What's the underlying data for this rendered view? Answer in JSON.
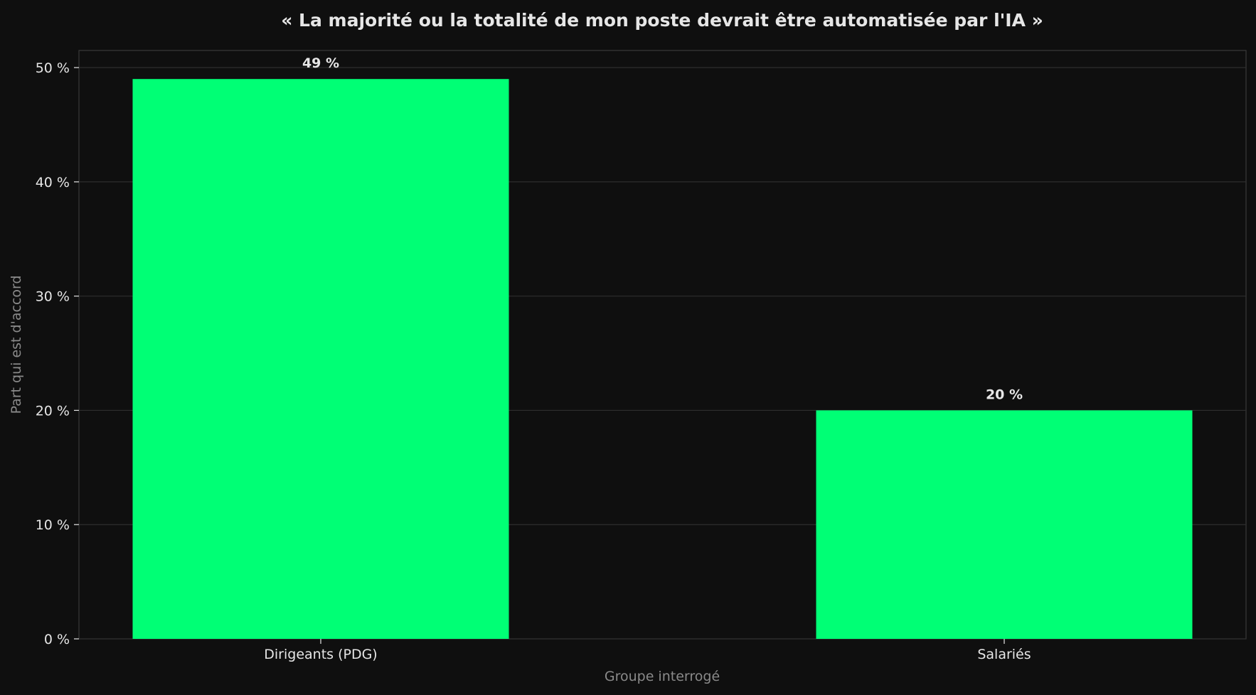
{
  "colors": {
    "background": "#0f0f0f",
    "bar": "#00ff75",
    "grid": "#2e2e2e",
    "axis": "#3a3a3a",
    "text": "#e6e6e6",
    "muted": "#8a8a8a"
  },
  "chart_data": {
    "type": "bar",
    "title": "« La majorité ou la totalité de mon poste devrait être automatisée par l'IA »",
    "xlabel": "Groupe interrogé",
    "ylabel": "Part qui est d'accord",
    "categories": [
      "Dirigeants (PDG)",
      "Salariés"
    ],
    "values": [
      49,
      20
    ],
    "value_labels": [
      "49 %",
      "20 %"
    ],
    "ylim": [
      0,
      51.5
    ],
    "yticks": [
      0,
      10,
      20,
      30,
      40,
      50
    ],
    "ytick_labels": [
      "0 %",
      "10 %",
      "20 %",
      "30 %",
      "40 %",
      "50 %"
    ],
    "grid": true,
    "legend": "none"
  }
}
